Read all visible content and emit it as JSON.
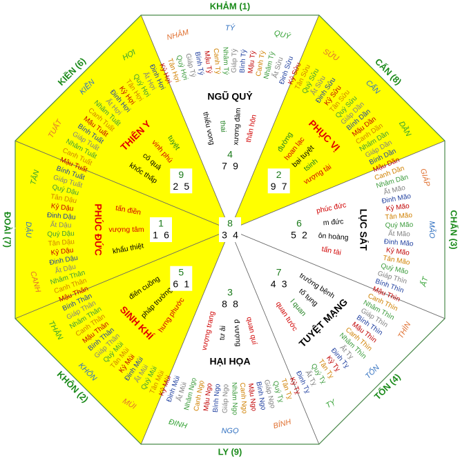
{
  "palaces": [
    {
      "label": "KHẢM (1)",
      "star": "NGŨ QUỶ",
      "star_color": "#000000",
      "fill": "#ffffff",
      "mountains": [
        {
          "text": "NHÂM",
          "color": "#e07030"
        },
        {
          "text": "TÝ",
          "color": "#3070c0"
        },
        {
          "text": "QUÝ",
          "color": "#30a030"
        }
      ],
      "flying": [
        4,
        7,
        9
      ],
      "notes": [
        {
          "text": "thiểu vong",
          "color": "#000000"
        },
        {
          "text": "thai",
          "color": "#208020"
        },
        {
          "text": "xương đàm",
          "color": "#000000"
        },
        {
          "text": "thân hôn",
          "color": "#d00000"
        }
      ]
    },
    {
      "label": "CẤN (8)",
      "star": "PHỤC VỊ",
      "star_color": "#e00000",
      "fill": "#ffff00",
      "mountains": [
        {
          "text": "SỬU",
          "color": "#e07030"
        },
        {
          "text": "CẤN",
          "color": "#3070c0"
        },
        {
          "text": "DẦN",
          "color": "#30a030"
        }
      ],
      "flying": [
        2,
        9,
        7
      ],
      "notes": [
        {
          "text": "đường",
          "color": "#208020"
        },
        {
          "text": "hoan lạc",
          "color": "#d00000"
        },
        {
          "text": "bại tuyệt",
          "color": "#000000"
        },
        {
          "text": "tsinh",
          "color": "#208020"
        },
        {
          "text": "vượng tài",
          "color": "#d00000"
        }
      ]
    },
    {
      "label": "CHẤN (3)",
      "star": "LỤC SÁT",
      "star_color": "#000000",
      "fill": "#ffffff",
      "mountains": [
        {
          "text": "GIÁP",
          "color": "#e07030"
        },
        {
          "text": "MÃO",
          "color": "#3070c0"
        },
        {
          "text": "ẤT",
          "color": "#30a030"
        }
      ],
      "flying": [
        6,
        5,
        2
      ],
      "notes": [
        {
          "text": "phúc đức",
          "color": "#d00000"
        },
        {
          "text": "m đức",
          "color": "#000000"
        },
        {
          "text": "ôn hoàng",
          "color": "#000000"
        },
        {
          "text": "tấn tài",
          "color": "#d00000"
        }
      ]
    },
    {
      "label": "TỐN (4)",
      "star": "TUYỆT MẠNG",
      "star_color": "#000000",
      "fill": "#ffffff",
      "mountains": [
        {
          "text": "THÌN",
          "color": "#e07030"
        },
        {
          "text": "TỐN",
          "color": "#3070c0"
        },
        {
          "text": "TỴ",
          "color": "#30a030"
        }
      ],
      "flying": [
        7,
        4,
        3
      ],
      "notes": [
        {
          "text": "trường bệnh",
          "color": "#000000"
        },
        {
          "text": "tố tụng",
          "color": "#000000"
        },
        {
          "text": "l quan",
          "color": "#208020"
        },
        {
          "text": "quan tước",
          "color": "#d00000"
        }
      ]
    },
    {
      "label": "LY (9)",
      "star": "HẠI HỌA",
      "star_color": "#000000",
      "fill": "#ffffff",
      "mountains": [
        {
          "text": "BÍNH",
          "color": "#e07030"
        },
        {
          "text": "NGỌ",
          "color": "#3070c0"
        },
        {
          "text": "ĐINH",
          "color": "#30a030"
        }
      ],
      "flying": [
        3,
        8,
        8
      ],
      "notes": [
        {
          "text": "quan quí",
          "color": "#d00000"
        },
        {
          "text": "đ vượng",
          "color": "#000000"
        },
        {
          "text": "tư ải",
          "color": "#000000"
        },
        {
          "text": "vượng trang",
          "color": "#d00000"
        }
      ]
    },
    {
      "label": "KHÔN (2)",
      "star": "SINH KHÍ",
      "star_color": "#e00000",
      "fill": "#ffff00",
      "mountains": [
        {
          "text": "MÙI",
          "color": "#e07030"
        },
        {
          "text": "KHÔN",
          "color": "#3070c0"
        },
        {
          "text": "THÂN",
          "color": "#30a030"
        }
      ],
      "flying": [
        5,
        6,
        1
      ],
      "notes": [
        {
          "text": "hưng phước",
          "color": "#d00000"
        },
        {
          "text": "pháp trường",
          "color": "#000000"
        },
        {
          "text": "điên cuồng",
          "color": "#000000"
        }
      ]
    },
    {
      "label": "ĐOÀI (7)",
      "star": "PHÚC ĐỨC",
      "star_color": "#e00000",
      "fill": "#ffff00",
      "mountains": [
        {
          "text": "CANH",
          "color": "#e07030"
        },
        {
          "text": "DẬU",
          "color": "#3070c0"
        },
        {
          "text": "TÂN",
          "color": "#30a030"
        }
      ],
      "flying": [
        1,
        1,
        6
      ],
      "notes": [
        {
          "text": "khẩu thiệt",
          "color": "#000000"
        },
        {
          "text": "vượng tâm",
          "color": "#d00000"
        },
        {
          "text": "tấn điền",
          "color": "#d00000"
        }
      ]
    },
    {
      "label": "KIỀN (6)",
      "star": "THIÊN Y",
      "star_color": "#e00000",
      "fill": "#ffff00",
      "mountains": [
        {
          "text": "TUẤT",
          "color": "#e07030"
        },
        {
          "text": "KIỀN",
          "color": "#3070c0"
        },
        {
          "text": "HỢI",
          "color": "#30a030"
        }
      ],
      "flying": [
        9,
        2,
        5
      ],
      "notes": [
        {
          "text": "khốc thấp",
          "color": "#000000"
        },
        {
          "text": "cô quả",
          "color": "#000000"
        },
        {
          "text": "vinh phú",
          "color": "#d00000"
        },
        {
          "text": "tuyệt",
          "color": "#208020"
        }
      ]
    }
  ],
  "center": [
    8,
    3,
    4
  ],
  "year_colors": [
    "#808080",
    "#1f3f9f",
    "#c00000",
    "#d08000",
    "#3a9a3a"
  ],
  "years": [
    "Giáp Tý",
    "Bính Tý",
    "Mậu Tý",
    "Canh Tý",
    "Nhâm Tý",
    "Giáp Tý",
    "Bính Tý",
    "Mậu Tý",
    "Canh Tý",
    "Nhâm Tý",
    "Ất Sửu",
    "Đinh Sửu",
    "Kỷ Sửu",
    "Tân Sửu",
    "Quý Sửu",
    "Ất Sửu",
    "Đinh Sửu",
    "Kỷ Sửu",
    "Tân Sửu",
    "Quý Sửu",
    "Giáp Dần",
    "Bính Dần",
    "Mậu Dần",
    "Canh Dần",
    "Nhâm Dần",
    "Giáp Dần",
    "Bính Dần",
    "Mậu Dần",
    "Canh Dần",
    "Nhâm Dần",
    "Ất Mão",
    "Đinh Mão",
    "Kỷ Mão",
    "Tân Mão",
    "Quý Mão",
    "Ất Mão",
    "Đinh Mão",
    "Kỷ Mão",
    "Tân Mão",
    "Quý Mão",
    "Giáp Thìn",
    "Bính Thìn",
    "Mậu Thìn",
    "Canh Thìn",
    "Nhâm Thìn",
    "Giáp Thìn",
    "Bính Thìn",
    "Mậu Thìn",
    "Canh Thìn",
    "Nhâm Thìn",
    "Ất Tỵ",
    "Đinh Tỵ",
    "Kỷ Tỵ",
    "Tân Tỵ",
    "Quý Tỵ",
    "Ất Tỵ",
    "Đinh Tỵ",
    "Kỷ Tỵ",
    "Tân Tỵ",
    "Quý Tỵ",
    "Giáp Ngọ",
    "Bính Ngọ",
    "Mậu Ngọ",
    "Canh Ngọ",
    "Nhâm Ngọ",
    "Giáp Ngọ",
    "Bính Ngọ",
    "Mậu Ngọ",
    "Canh Ngọ",
    "Nhâm Ngọ",
    "Ất Mùi",
    "Đinh Mùi",
    "Kỷ Mùi",
    "Tân Mùi",
    "Quý Mùi",
    "Ất Mùi",
    "Đinh Mùi",
    "Kỷ Mùi",
    "Tân Mùi",
    "Quý Mùi",
    "Giáp Thân",
    "Bính Thân",
    "Mậu Thân",
    "Canh Thân",
    "Nhâm Thân",
    "Giáp Thân",
    "Bính Thân",
    "Mậu Thân",
    "Canh Thân",
    "Nhâm Thân",
    "Ất Dậu",
    "Đinh Dậu",
    "Kỷ Dậu",
    "Tân Dậu",
    "Quý Dậu",
    "Ất Dậu",
    "Đinh Dậu",
    "Kỷ Dậu",
    "Tân Dậu",
    "Quý Dậu",
    "Giáp Tuất",
    "Bính Tuất",
    "Mậu Tuất",
    "Canh Tuất",
    "Nhâm Tuất",
    "Giáp Tuất",
    "Bính Tuất",
    "Mậu Tuất",
    "Canh Tuất",
    "Nhâm Tuất",
    "Ất Hợi",
    "Đinh Hợi",
    "Kỷ Hợi",
    "Tân Hợi",
    "Quý Hợi",
    "Ất Hợi",
    "Đinh Hợi",
    "Kỷ Hợi",
    "Tân Hợi",
    "Quý Hợi"
  ]
}
